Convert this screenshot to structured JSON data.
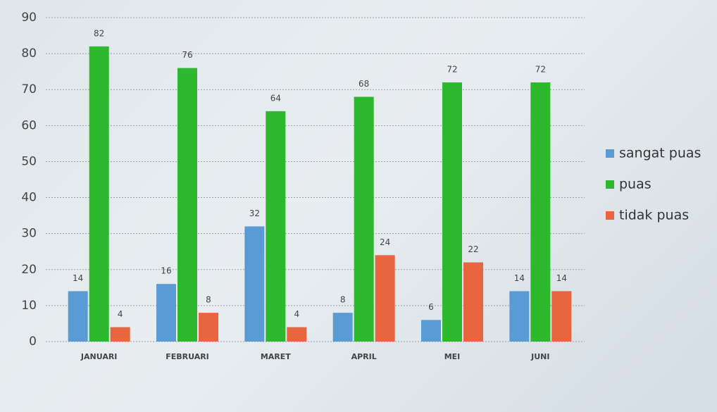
{
  "chart_data": {
    "type": "bar",
    "categories": [
      "JANUARI",
      "FEBRUARI",
      "MARET",
      "APRIL",
      "MEI",
      "JUNI"
    ],
    "series": [
      {
        "name": "sangat puas",
        "color": "#5b9bd5",
        "values": [
          14,
          16,
          32,
          8,
          6,
          14
        ]
      },
      {
        "name": "puas",
        "color": "#2eb82e",
        "values": [
          82,
          76,
          64,
          68,
          72,
          72
        ]
      },
      {
        "name": "tidak puas",
        "color": "#e8653f",
        "values": [
          4,
          8,
          4,
          24,
          22,
          14
        ]
      }
    ],
    "ylim": [
      0,
      90
    ],
    "yticks": [
      0,
      10,
      20,
      30,
      40,
      50,
      60,
      70,
      80,
      90
    ],
    "grid": true,
    "legend": "right"
  }
}
